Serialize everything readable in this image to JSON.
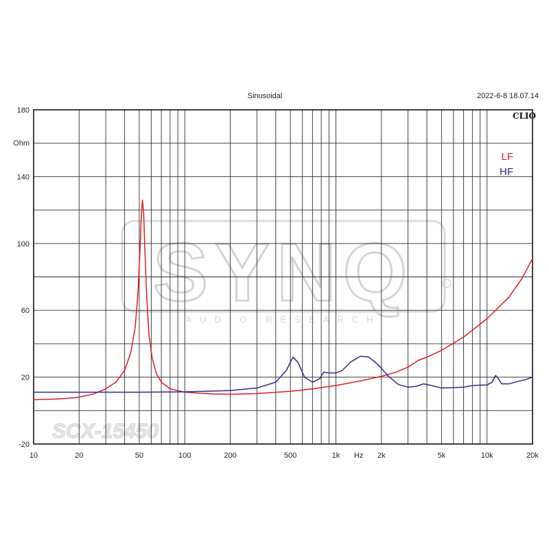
{
  "header": {
    "title": "Sinusoidal",
    "timestamp": "2022-6-8 18.07.14",
    "brand": "CLIO"
  },
  "watermark": {
    "logo": "SYNQ",
    "subtitle": "AUDIO RESEARCH",
    "model": "SCX-15450"
  },
  "colors": {
    "lf": "#e0191e",
    "hf": "#2a2a8a",
    "grid": "#2b2b2b",
    "frame": "#111111"
  },
  "chart_data": {
    "type": "line",
    "title": "Sinusoidal",
    "xlabel": "Hz",
    "ylabel": "Ohm",
    "xscale": "log",
    "xlim": [
      10,
      20000
    ],
    "ylim": [
      -20,
      180
    ],
    "grid": true,
    "legend_position": "top-right",
    "y_ticks": [
      {
        "value": 180,
        "label": "180"
      },
      {
        "value": 140,
        "label": "140"
      },
      {
        "value": 100,
        "label": "100"
      },
      {
        "value": 60,
        "label": "60"
      },
      {
        "value": 20,
        "label": "20"
      },
      {
        "value": -20,
        "label": "-20"
      }
    ],
    "x_ticks": [
      {
        "value": 10,
        "label": "10"
      },
      {
        "value": 20,
        "label": "20"
      },
      {
        "value": 50,
        "label": "50"
      },
      {
        "value": 100,
        "label": "100"
      },
      {
        "value": 200,
        "label": "200"
      },
      {
        "value": 500,
        "label": "500"
      },
      {
        "value": 1000,
        "label": "1k"
      },
      {
        "value": 2000,
        "label": "2k"
      },
      {
        "value": 5000,
        "label": "5k"
      },
      {
        "value": 10000,
        "label": "10k"
      },
      {
        "value": 20000,
        "label": "20k"
      }
    ],
    "series": [
      {
        "name": "LF",
        "color": "#e0191e",
        "points": [
          [
            10,
            6.5
          ],
          [
            15,
            7
          ],
          [
            20,
            8
          ],
          [
            25,
            10
          ],
          [
            30,
            13
          ],
          [
            35,
            17
          ],
          [
            40,
            24
          ],
          [
            44,
            35
          ],
          [
            47,
            50
          ],
          [
            49,
            70
          ],
          [
            50.5,
            95
          ],
          [
            51.5,
            115
          ],
          [
            52.5,
            126
          ],
          [
            53.5,
            118
          ],
          [
            54.5,
            95
          ],
          [
            56,
            68
          ],
          [
            58,
            45
          ],
          [
            61,
            31
          ],
          [
            65,
            22
          ],
          [
            70,
            17
          ],
          [
            80,
            13
          ],
          [
            100,
            11
          ],
          [
            150,
            10
          ],
          [
            200,
            9.8
          ],
          [
            300,
            10.2
          ],
          [
            500,
            11.5
          ],
          [
            700,
            13
          ],
          [
            1000,
            15
          ],
          [
            1500,
            18
          ],
          [
            2000,
            20.5
          ],
          [
            2500,
            23
          ],
          [
            3000,
            26
          ],
          [
            3500,
            30
          ],
          [
            4000,
            32
          ],
          [
            5000,
            36
          ],
          [
            7000,
            44
          ],
          [
            10000,
            55
          ],
          [
            14000,
            68
          ],
          [
            17000,
            79
          ],
          [
            20000,
            91
          ]
        ]
      },
      {
        "name": "HF",
        "color": "#2a2a8a",
        "points": [
          [
            10,
            11
          ],
          [
            50,
            11
          ],
          [
            100,
            11.2
          ],
          [
            200,
            12
          ],
          [
            300,
            13.5
          ],
          [
            400,
            17
          ],
          [
            470,
            24
          ],
          [
            520,
            32
          ],
          [
            560,
            29
          ],
          [
            620,
            20
          ],
          [
            700,
            17
          ],
          [
            780,
            19
          ],
          [
            830,
            23
          ],
          [
            900,
            22.5
          ],
          [
            1000,
            22.5
          ],
          [
            1100,
            24
          ],
          [
            1250,
            29
          ],
          [
            1450,
            32.5
          ],
          [
            1650,
            32
          ],
          [
            1900,
            27.5
          ],
          [
            2200,
            21
          ],
          [
            2600,
            15.5
          ],
          [
            3000,
            14
          ],
          [
            3400,
            14.5
          ],
          [
            3800,
            16
          ],
          [
            4300,
            15
          ],
          [
            5000,
            13.5
          ],
          [
            6000,
            13.8
          ],
          [
            7000,
            14
          ],
          [
            8000,
            15
          ],
          [
            9000,
            15.2
          ],
          [
            10000,
            15.3
          ],
          [
            10800,
            17
          ],
          [
            11400,
            21
          ],
          [
            11900,
            19
          ],
          [
            12500,
            16
          ],
          [
            14000,
            16
          ],
          [
            16000,
            17.5
          ],
          [
            18000,
            18.5
          ],
          [
            20000,
            20
          ]
        ]
      }
    ]
  }
}
